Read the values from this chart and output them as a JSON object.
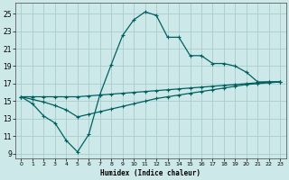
{
  "xlabel": "Humidex (Indice chaleur)",
  "bg_color": "#cce8e8",
  "grid_color": "#aacccc",
  "line_color": "#006060",
  "xlim": [
    -0.5,
    23.5
  ],
  "ylim": [
    8.5,
    26.2
  ],
  "xticks": [
    0,
    1,
    2,
    3,
    4,
    5,
    6,
    7,
    8,
    9,
    10,
    11,
    12,
    13,
    14,
    15,
    16,
    17,
    18,
    19,
    20,
    21,
    22,
    23
  ],
  "yticks": [
    9,
    11,
    13,
    15,
    17,
    19,
    21,
    23,
    25
  ],
  "line1_x": [
    0,
    1,
    2,
    3,
    4,
    5,
    6,
    7,
    8,
    9,
    10,
    11,
    12,
    13,
    14,
    15,
    16,
    17,
    18,
    19,
    20,
    21,
    22,
    23
  ],
  "line1_y": [
    15.5,
    14.7,
    13.3,
    12.5,
    10.5,
    9.2,
    11.2,
    15.8,
    19.2,
    22.5,
    24.3,
    25.2,
    24.8,
    22.3,
    22.3,
    20.2,
    20.2,
    19.3,
    19.3,
    19.0,
    18.3,
    17.2,
    17.2,
    17.2
  ],
  "line2_x": [
    0,
    1,
    2,
    3,
    4,
    5,
    6,
    7,
    8,
    9,
    10,
    11,
    12,
    13,
    14,
    15,
    16,
    17,
    18,
    19,
    20,
    21,
    22,
    23
  ],
  "line2_y": [
    15.5,
    15.5,
    15.5,
    15.5,
    15.5,
    15.5,
    15.6,
    15.7,
    15.8,
    15.9,
    16.0,
    16.1,
    16.2,
    16.3,
    16.4,
    16.5,
    16.6,
    16.7,
    16.8,
    16.9,
    17.0,
    17.1,
    17.2,
    17.2
  ],
  "line3_x": [
    0,
    1,
    2,
    3,
    4,
    5,
    6,
    7,
    8,
    9,
    10,
    11,
    12,
    13,
    14,
    15,
    16,
    17,
    18,
    19,
    20,
    21,
    22,
    23
  ],
  "line3_y": [
    15.5,
    15.2,
    14.9,
    14.5,
    14.0,
    13.2,
    13.5,
    13.8,
    14.1,
    14.4,
    14.7,
    15.0,
    15.3,
    15.5,
    15.7,
    15.9,
    16.1,
    16.3,
    16.5,
    16.7,
    16.9,
    17.0,
    17.1,
    17.2
  ]
}
